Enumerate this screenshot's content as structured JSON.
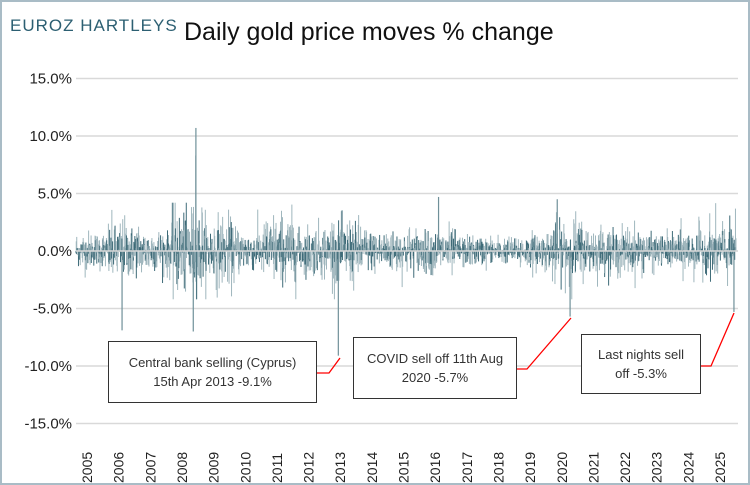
{
  "logo": "EUROZ HARTLEYS",
  "chart_data": {
    "type": "bar",
    "title": "Daily gold price moves % change",
    "xlabel": "",
    "ylabel": "",
    "ylim": [
      -15,
      15
    ],
    "yticks": [
      "15.0%",
      "10.0%",
      "5.0%",
      "0.0%",
      "-5.0%",
      "-10.0%",
      "-15.0%"
    ],
    "ytick_values": [
      15,
      10,
      5,
      0,
      -5,
      -10,
      -15
    ],
    "xticks": [
      "2005",
      "2006",
      "2007",
      "2008",
      "2009",
      "2010",
      "2011",
      "2012",
      "2013",
      "2014",
      "2015",
      "2016",
      "2017",
      "2018",
      "2019",
      "2020",
      "2021",
      "2022",
      "2023",
      "2024",
      "2025"
    ],
    "xlim": [
      2005,
      2025.85
    ],
    "grid": true,
    "legend": "none",
    "color": "#3e6b78",
    "approx_daily_volatility_pct_by_year": {
      "2005": 0.8,
      "2006": 1.3,
      "2007": 1.0,
      "2008": 2.0,
      "2009": 1.4,
      "2010": 1.0,
      "2011": 1.5,
      "2012": 1.1,
      "2013": 1.4,
      "2014": 1.0,
      "2015": 1.0,
      "2016": 1.0,
      "2017": 0.7,
      "2018": 0.6,
      "2019": 0.8,
      "2020": 1.4,
      "2021": 1.0,
      "2022": 1.0,
      "2023": 0.8,
      "2024": 1.0,
      "2025": 1.3
    },
    "notable_moves": [
      {
        "date": "2006-06",
        "value": -6.9
      },
      {
        "date": "2008-09",
        "value": -7.0
      },
      {
        "date": "2008-10",
        "value": 10.7
      },
      {
        "date": "2008-10",
        "value": 8.3
      },
      {
        "date": "2013-04-15",
        "value": -9.1
      },
      {
        "date": "2016-06",
        "value": 4.7
      },
      {
        "date": "2020-03",
        "value": 4.5
      },
      {
        "date": "2020-08-11",
        "value": -5.7
      },
      {
        "date": "2025-10",
        "value": -5.3
      }
    ],
    "annotations": [
      {
        "text_line1": "Central bank selling (Cyprus)",
        "text_line2": "15th Apr 2013 -9.1%"
      },
      {
        "text_line1": "COVID sell off 11th Aug",
        "text_line2": "2020 -5.7%"
      },
      {
        "text_line1": "Last nights sell",
        "text_line2": "off -5.3%"
      }
    ]
  }
}
